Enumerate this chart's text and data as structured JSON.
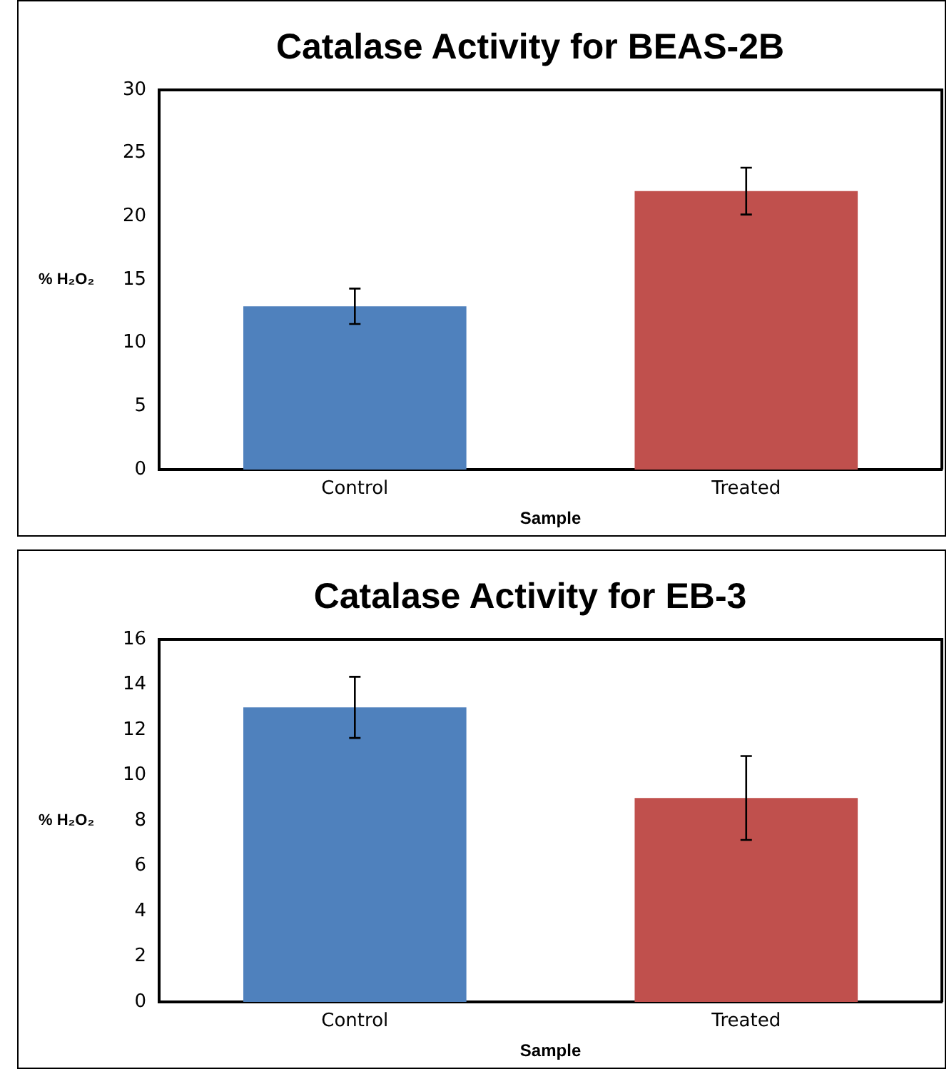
{
  "chart_data": [
    {
      "type": "bar",
      "title": "Catalase Activity for BEAS-2B",
      "xlabel": "Sample",
      "ylabel": "% H₂O₂",
      "categories": [
        "Control",
        "Treated"
      ],
      "values": [
        12.9,
        22.0
      ],
      "colors": [
        "#4f81bd",
        "#c0504d"
      ],
      "errors": [
        1.4,
        1.85
      ],
      "ylim": [
        0,
        30
      ],
      "yticks": [
        0,
        5,
        10,
        15,
        20,
        25,
        30
      ],
      "grid": false,
      "legend": false
    },
    {
      "type": "bar",
      "title": "Catalase Activity for EB-3",
      "xlabel": "Sample",
      "ylabel": "% H₂O₂",
      "categories": [
        "Control",
        "Treated"
      ],
      "values": [
        13.0,
        9.0
      ],
      "colors": [
        "#4f81bd",
        "#c0504d"
      ],
      "errors": [
        1.35,
        1.85
      ],
      "ylim": [
        0,
        16
      ],
      "yticks": [
        0,
        2,
        4,
        6,
        8,
        10,
        12,
        14,
        16
      ],
      "grid": false,
      "legend": false
    }
  ]
}
